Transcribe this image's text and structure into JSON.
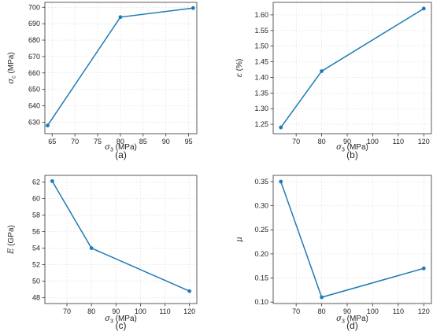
{
  "colors": {
    "series": "#1f7bb6"
  },
  "chart_data": [
    {
      "id": "a",
      "type": "line",
      "caption": "(a)",
      "xlabel": {
        "symbol": "σ",
        "sub": "3",
        "unit": " (MPa)"
      },
      "ylabel": {
        "symbol": "σ",
        "sub": "c",
        "unit": " (MPa)"
      },
      "xlim": [
        63.4,
        96.8
      ],
      "ylim": [
        623,
        703
      ],
      "xticks": [
        65,
        70,
        75,
        80,
        85,
        90,
        95
      ],
      "yticks": [
        630,
        640,
        650,
        660,
        670,
        680,
        690,
        700
      ],
      "ytick_labels": [
        "630",
        "640",
        "650",
        "660",
        "670",
        "680",
        "690",
        "700"
      ],
      "grid": true,
      "series": [
        {
          "x": [
            64,
            80,
            96
          ],
          "y": [
            628,
            694,
            699.5
          ]
        }
      ]
    },
    {
      "id": "b",
      "type": "line",
      "caption": "(b)",
      "xlabel": {
        "symbol": "σ",
        "sub": "3",
        "unit": " (MPa)"
      },
      "ylabel": {
        "symbol": "ε",
        "sub": "",
        "unit": " (%)"
      },
      "xlim": [
        61,
        123
      ],
      "ylim": [
        1.22,
        1.64
      ],
      "xticks": [
        70,
        80,
        90,
        100,
        110,
        120
      ],
      "yticks": [
        1.25,
        1.3,
        1.35,
        1.4,
        1.45,
        1.5,
        1.55,
        1.6
      ],
      "ytick_labels": [
        "1.25",
        "1.30",
        "1.35",
        "1.40",
        "1.45",
        "1.50",
        "1.55",
        "1.60"
      ],
      "grid": true,
      "series": [
        {
          "x": [
            64,
            80,
            120
          ],
          "y": [
            1.24,
            1.42,
            1.62
          ]
        }
      ]
    },
    {
      "id": "c",
      "type": "line",
      "caption": "(c)",
      "xlabel": {
        "symbol": "σ",
        "sub": "3",
        "unit": " (MPa)"
      },
      "ylabel": {
        "symbol": "E",
        "sub": "",
        "unit": " (GPa)"
      },
      "xlim": [
        61,
        123
      ],
      "ylim": [
        47.3,
        62.8
      ],
      "xticks": [
        70,
        80,
        90,
        100,
        110,
        120
      ],
      "yticks": [
        48,
        50,
        52,
        54,
        56,
        58,
        60,
        62
      ],
      "ytick_labels": [
        "48",
        "50",
        "52",
        "54",
        "56",
        "58",
        "60",
        "62"
      ],
      "grid": true,
      "series": [
        {
          "x": [
            64,
            80,
            120
          ],
          "y": [
            62.1,
            54.0,
            48.8
          ]
        }
      ]
    },
    {
      "id": "d",
      "type": "line",
      "caption": "(d)",
      "xlabel": {
        "symbol": "σ",
        "sub": "3",
        "unit": " (MPa)"
      },
      "ylabel": {
        "symbol": "μ",
        "sub": "",
        "unit": ""
      },
      "xlim": [
        61,
        123
      ],
      "ylim": [
        0.097,
        0.363
      ],
      "xticks": [
        70,
        80,
        90,
        100,
        110,
        120
      ],
      "yticks": [
        0.1,
        0.15,
        0.2,
        0.25,
        0.3,
        0.35
      ],
      "ytick_labels": [
        "0.10",
        "0.15",
        "0.20",
        "0.25",
        "0.30",
        "0.35"
      ],
      "grid": true,
      "series": [
        {
          "x": [
            64,
            80,
            120
          ],
          "y": [
            0.35,
            0.11,
            0.17
          ]
        }
      ]
    }
  ]
}
